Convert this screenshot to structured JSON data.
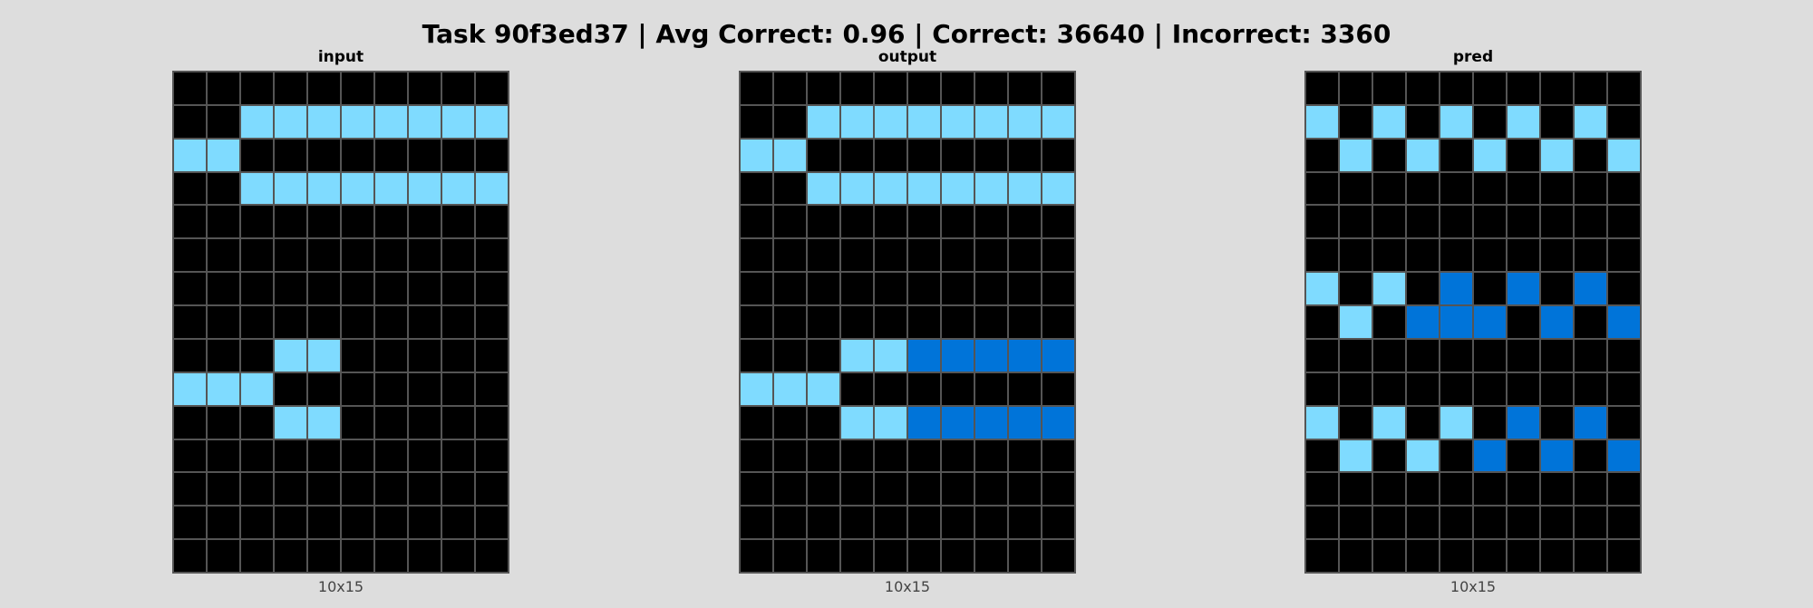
{
  "header": {
    "title": "Task 90f3ed37 | Avg Correct: 0.96 | Correct: 36640 | Incorrect: 3360"
  },
  "palette": {
    "0": "#000000",
    "1": "#0074d9",
    "8": "#7fdbff"
  },
  "panels": [
    {
      "label": "input",
      "size": "10x15",
      "grid": [
        [
          0,
          0,
          0,
          0,
          0,
          0,
          0,
          0,
          0,
          0
        ],
        [
          0,
          0,
          8,
          8,
          8,
          8,
          8,
          8,
          8,
          8
        ],
        [
          8,
          8,
          0,
          0,
          0,
          0,
          0,
          0,
          0,
          0
        ],
        [
          0,
          0,
          8,
          8,
          8,
          8,
          8,
          8,
          8,
          8
        ],
        [
          0,
          0,
          0,
          0,
          0,
          0,
          0,
          0,
          0,
          0
        ],
        [
          0,
          0,
          0,
          0,
          0,
          0,
          0,
          0,
          0,
          0
        ],
        [
          0,
          0,
          0,
          0,
          0,
          0,
          0,
          0,
          0,
          0
        ],
        [
          0,
          0,
          0,
          0,
          0,
          0,
          0,
          0,
          0,
          0
        ],
        [
          0,
          0,
          0,
          8,
          8,
          0,
          0,
          0,
          0,
          0
        ],
        [
          8,
          8,
          8,
          0,
          0,
          0,
          0,
          0,
          0,
          0
        ],
        [
          0,
          0,
          0,
          8,
          8,
          0,
          0,
          0,
          0,
          0
        ],
        [
          0,
          0,
          0,
          0,
          0,
          0,
          0,
          0,
          0,
          0
        ],
        [
          0,
          0,
          0,
          0,
          0,
          0,
          0,
          0,
          0,
          0
        ],
        [
          0,
          0,
          0,
          0,
          0,
          0,
          0,
          0,
          0,
          0
        ],
        [
          0,
          0,
          0,
          0,
          0,
          0,
          0,
          0,
          0,
          0
        ]
      ]
    },
    {
      "label": "output",
      "size": "10x15",
      "grid": [
        [
          0,
          0,
          0,
          0,
          0,
          0,
          0,
          0,
          0,
          0
        ],
        [
          0,
          0,
          8,
          8,
          8,
          8,
          8,
          8,
          8,
          8
        ],
        [
          8,
          8,
          0,
          0,
          0,
          0,
          0,
          0,
          0,
          0
        ],
        [
          0,
          0,
          8,
          8,
          8,
          8,
          8,
          8,
          8,
          8
        ],
        [
          0,
          0,
          0,
          0,
          0,
          0,
          0,
          0,
          0,
          0
        ],
        [
          0,
          0,
          0,
          0,
          0,
          0,
          0,
          0,
          0,
          0
        ],
        [
          0,
          0,
          0,
          0,
          0,
          0,
          0,
          0,
          0,
          0
        ],
        [
          0,
          0,
          0,
          0,
          0,
          0,
          0,
          0,
          0,
          0
        ],
        [
          0,
          0,
          0,
          8,
          8,
          1,
          1,
          1,
          1,
          1
        ],
        [
          8,
          8,
          8,
          0,
          0,
          0,
          0,
          0,
          0,
          0
        ],
        [
          0,
          0,
          0,
          8,
          8,
          1,
          1,
          1,
          1,
          1
        ],
        [
          0,
          0,
          0,
          0,
          0,
          0,
          0,
          0,
          0,
          0
        ],
        [
          0,
          0,
          0,
          0,
          0,
          0,
          0,
          0,
          0,
          0
        ],
        [
          0,
          0,
          0,
          0,
          0,
          0,
          0,
          0,
          0,
          0
        ],
        [
          0,
          0,
          0,
          0,
          0,
          0,
          0,
          0,
          0,
          0
        ]
      ]
    },
    {
      "label": "pred",
      "size": "10x15",
      "grid": [
        [
          0,
          0,
          0,
          0,
          0,
          0,
          0,
          0,
          0,
          0
        ],
        [
          8,
          0,
          8,
          0,
          8,
          0,
          8,
          0,
          8,
          0
        ],
        [
          0,
          8,
          0,
          8,
          0,
          8,
          0,
          8,
          0,
          8
        ],
        [
          0,
          0,
          0,
          0,
          0,
          0,
          0,
          0,
          0,
          0
        ],
        [
          0,
          0,
          0,
          0,
          0,
          0,
          0,
          0,
          0,
          0
        ],
        [
          0,
          0,
          0,
          0,
          0,
          0,
          0,
          0,
          0,
          0
        ],
        [
          8,
          0,
          8,
          0,
          1,
          0,
          1,
          0,
          1,
          0
        ],
        [
          0,
          8,
          0,
          1,
          1,
          1,
          0,
          1,
          0,
          1
        ],
        [
          0,
          0,
          0,
          0,
          0,
          0,
          0,
          0,
          0,
          0
        ],
        [
          0,
          0,
          0,
          0,
          0,
          0,
          0,
          0,
          0,
          0
        ],
        [
          8,
          0,
          8,
          0,
          8,
          0,
          1,
          0,
          1,
          0
        ],
        [
          0,
          8,
          0,
          8,
          0,
          1,
          0,
          1,
          0,
          1
        ],
        [
          0,
          0,
          0,
          0,
          0,
          0,
          0,
          0,
          0,
          0
        ],
        [
          0,
          0,
          0,
          0,
          0,
          0,
          0,
          0,
          0,
          0
        ],
        [
          0,
          0,
          0,
          0,
          0,
          0,
          0,
          0,
          0,
          0
        ]
      ]
    }
  ]
}
